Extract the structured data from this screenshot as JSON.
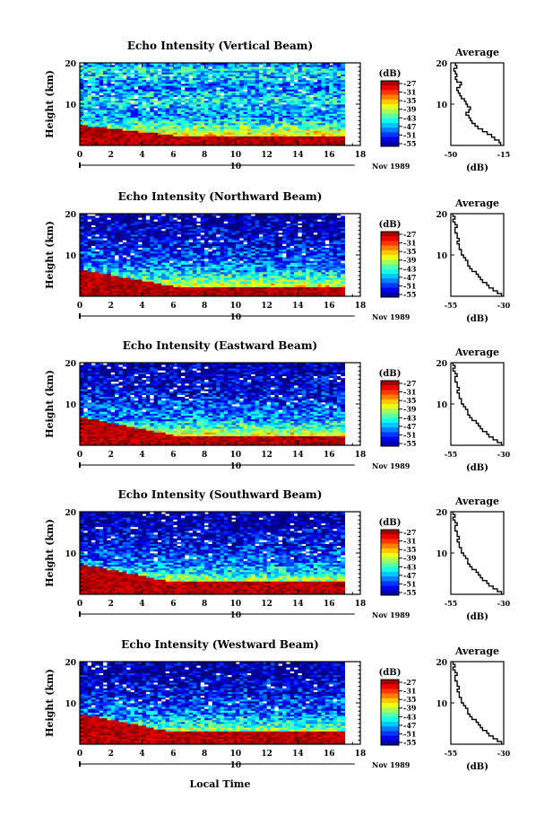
{
  "figure": {
    "x_axis_title": "Local Time",
    "date_label": "Nov 1989",
    "day_label": "10",
    "colorbar_unit": "(dB)",
    "colorbar_ticks": [
      -27,
      -31,
      -35,
      -39,
      -43,
      -47,
      -51,
      -55
    ],
    "y_axis_title": "Height (km)",
    "avg_xlabel": "(dB)"
  },
  "chart_data": [
    {
      "type": "heatmap",
      "title": "Echo Intensity (Vertical Beam)",
      "xlabel": "",
      "ylabel": "Height (km)",
      "xlim": [
        0,
        18
      ],
      "xticks": [
        0,
        2,
        4,
        6,
        8,
        10,
        12,
        14,
        16,
        18
      ],
      "ylim": [
        0,
        20
      ],
      "yticks": [
        10,
        20
      ],
      "colorbar": {
        "label": "(dB)",
        "range": [
          -55,
          -27
        ]
      },
      "data_end_hour": 17,
      "profile": [
        -28,
        -30,
        -34,
        -38,
        -42,
        -44,
        -46,
        -47,
        -47,
        -46,
        -45,
        -45,
        -46,
        -48,
        -48,
        -47,
        -46,
        -45,
        -45,
        -48
      ],
      "transition_height_km": {
        "start": 5.0,
        "end": 2.5
      }
    },
    {
      "type": "heatmap",
      "title": "Echo Intensity (Northward Beam)",
      "xlabel": "",
      "ylabel": "Height (km)",
      "xlim": [
        0,
        18
      ],
      "xticks": [
        0,
        2,
        4,
        6,
        8,
        10,
        12,
        14,
        16,
        18
      ],
      "ylim": [
        0,
        20
      ],
      "yticks": [
        10,
        20
      ],
      "colorbar": {
        "label": "(dB)",
        "range": [
          -55,
          -27
        ]
      },
      "data_end_hour": 17,
      "profile": [
        -30,
        -33,
        -37,
        -40,
        -43,
        -45,
        -46,
        -48,
        -49,
        -50,
        -50,
        -51,
        -52,
        -52,
        -53,
        -53,
        -53,
        -54,
        -54,
        -54
      ],
      "transition_height_km": {
        "start": 6.5,
        "end": 2.5
      }
    },
    {
      "type": "heatmap",
      "title": "Echo Intensity (Eastward Beam)",
      "xlabel": "",
      "ylabel": "Height (km)",
      "xlim": [
        0,
        18
      ],
      "xticks": [
        0,
        2,
        4,
        6,
        8,
        10,
        12,
        14,
        16,
        18
      ],
      "ylim": [
        0,
        20
      ],
      "yticks": [
        10,
        20
      ],
      "colorbar": {
        "label": "(dB)",
        "range": [
          -55,
          -27
        ]
      },
      "data_end_hour": 17,
      "profile": [
        -30,
        -33,
        -37,
        -40,
        -43,
        -45,
        -47,
        -48,
        -49,
        -50,
        -50,
        -51,
        -52,
        -52,
        -53,
        -53,
        -53,
        -54,
        -54,
        -54
      ],
      "transition_height_km": {
        "start": 7.0,
        "end": 2.5
      }
    },
    {
      "type": "heatmap",
      "title": "Echo Intensity (Southward Beam)",
      "xlabel": "",
      "ylabel": "Height (km)",
      "xlim": [
        0,
        18
      ],
      "xticks": [
        0,
        2,
        4,
        6,
        8,
        10,
        12,
        14,
        16,
        18
      ],
      "ylim": [
        0,
        20
      ],
      "yticks": [
        10,
        20
      ],
      "colorbar": {
        "label": "(dB)",
        "range": [
          -55,
          -27
        ]
      },
      "data_end_hour": 17,
      "profile": [
        -30,
        -33,
        -37,
        -40,
        -43,
        -45,
        -46,
        -48,
        -49,
        -50,
        -50,
        -51,
        -52,
        -52,
        -53,
        -53,
        -54,
        -54,
        -54,
        -54
      ],
      "transition_height_km": {
        "start": 7.5,
        "end": 3.0
      }
    },
    {
      "type": "heatmap",
      "title": "Echo Intensity (Westward Beam)",
      "xlabel": "Local Time",
      "ylabel": "Height (km)",
      "xlim": [
        0,
        18
      ],
      "xticks": [
        0,
        2,
        4,
        6,
        8,
        10,
        12,
        14,
        16,
        18
      ],
      "ylim": [
        0,
        20
      ],
      "yticks": [
        10,
        20
      ],
      "colorbar": {
        "label": "(dB)",
        "range": [
          -55,
          -27
        ]
      },
      "data_end_hour": 17,
      "profile": [
        -30,
        -33,
        -37,
        -40,
        -43,
        -45,
        -46,
        -48,
        -49,
        -50,
        -50,
        -51,
        -52,
        -52,
        -53,
        -53,
        -54,
        -54,
        -54,
        -54
      ],
      "transition_height_km": {
        "start": 7.5,
        "end": 3.0
      }
    }
  ],
  "averages": [
    {
      "title": "Average",
      "xlabel": "(dB)",
      "xlim": [
        -50,
        -15
      ],
      "xtick_labels": [
        "-50",
        "-15"
      ],
      "ylim": [
        0,
        20
      ],
      "yticks": [
        10,
        20
      ],
      "profile": [
        -17,
        -18,
        -21,
        -23,
        -26,
        -29,
        -32,
        -34,
        -36,
        -37,
        -38,
        -40,
        -38,
        -37,
        -39,
        -40,
        -41,
        -43,
        -44,
        -45,
        -46,
        -44,
        -43,
        -46,
        -47,
        -46,
        -47,
        -48,
        -46,
        -47
      ]
    },
    {
      "title": "Average",
      "xlabel": "(dB)",
      "xlim": [
        -55,
        -30
      ],
      "xtick_labels": [
        "-55",
        "-30"
      ],
      "ylim": [
        0,
        20
      ],
      "yticks": [
        10,
        20
      ],
      "profile": [
        -31,
        -33,
        -35,
        -37,
        -38,
        -40,
        -41,
        -42,
        -43,
        -45,
        -46,
        -47,
        -47,
        -48,
        -49,
        -50,
        -50,
        -51,
        -51,
        -52,
        -51,
        -52,
        -52,
        -53,
        -53,
        -52,
        -53,
        -54,
        -53,
        -54
      ]
    },
    {
      "title": "Average",
      "xlabel": "(dB)",
      "xlim": [
        -55,
        -30
      ],
      "xtick_labels": [
        "-55",
        "-30"
      ],
      "ylim": [
        0,
        20
      ],
      "yticks": [
        10,
        20
      ],
      "profile": [
        -31,
        -33,
        -35,
        -37,
        -38,
        -40,
        -41,
        -42,
        -43,
        -45,
        -46,
        -47,
        -47,
        -48,
        -49,
        -50,
        -50,
        -51,
        -51,
        -52,
        -51,
        -52,
        -52,
        -53,
        -53,
        -52,
        -53,
        -54,
        -53,
        -54
      ]
    },
    {
      "title": "Average",
      "xlabel": "(dB)",
      "xlim": [
        -55,
        -30
      ],
      "xtick_labels": [
        "-55",
        "-30"
      ],
      "ylim": [
        0,
        20
      ],
      "yticks": [
        10,
        20
      ],
      "profile": [
        -31,
        -33,
        -35,
        -37,
        -38,
        -40,
        -41,
        -42,
        -43,
        -45,
        -46,
        -47,
        -47,
        -48,
        -49,
        -50,
        -50,
        -51,
        -51,
        -52,
        -51,
        -52,
        -52,
        -53,
        -53,
        -52,
        -53,
        -54,
        -53,
        -54
      ]
    },
    {
      "title": "Average",
      "xlabel": "(dB)",
      "xlim": [
        -55,
        -30
      ],
      "xtick_labels": [
        "-55",
        "-30"
      ],
      "ylim": [
        0,
        20
      ],
      "yticks": [
        10,
        20
      ],
      "profile": [
        -31,
        -33,
        -35,
        -37,
        -38,
        -40,
        -41,
        -42,
        -43,
        -45,
        -46,
        -47,
        -47,
        -48,
        -49,
        -50,
        -50,
        -51,
        -51,
        -52,
        -51,
        -52,
        -52,
        -53,
        -53,
        -52,
        -53,
        -54,
        -53,
        -54
      ]
    }
  ],
  "colors": {
    "axis": "#000000",
    "missing": "#ffffff",
    "background": "#ffffff"
  }
}
